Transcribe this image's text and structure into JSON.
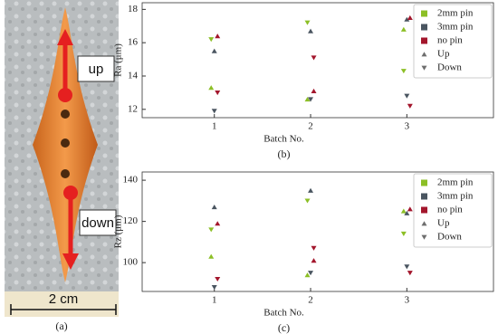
{
  "photo": {
    "labels": [
      "up",
      "down"
    ],
    "scale": "2 cm",
    "caption": "(a)"
  },
  "chart_data": [
    {
      "type": "scatter",
      "caption": "(b)",
      "ylabel": "Ra (μm)",
      "xlabel": "Batch No.",
      "x": [
        1,
        2,
        3
      ],
      "xlim": [
        0.25,
        3.9
      ],
      "xticks": [
        1,
        2,
        3
      ],
      "ylim": [
        11.5,
        18.4
      ],
      "yticks": [
        12,
        14,
        16,
        18
      ],
      "series": [
        {
          "name": "2mm pin",
          "color": "#8cbf26",
          "up": [
            13.3,
            12.6,
            16.8
          ],
          "down": [
            16.2,
            17.2,
            14.3
          ]
        },
        {
          "name": "3mm pin",
          "color": "#4a5560",
          "up": [
            15.5,
            16.7,
            17.4
          ],
          "down": [
            11.9,
            12.6,
            12.8
          ]
        },
        {
          "name": "no pin",
          "color": "#a3162c",
          "up": [
            16.4,
            13.1,
            17.5
          ],
          "down": [
            13.0,
            15.1,
            12.2
          ]
        }
      ],
      "markers": [
        {
          "name": "Up",
          "color": "#6e6e6e"
        },
        {
          "name": "Down",
          "color": "#6e6e6e"
        }
      ]
    },
    {
      "type": "scatter",
      "caption": "(c)",
      "ylabel": "Rz (μm)",
      "xlabel": "Batch No.",
      "x": [
        1,
        2,
        3
      ],
      "xlim": [
        0.25,
        3.9
      ],
      "xticks": [
        1,
        2,
        3
      ],
      "ylim": [
        86,
        144
      ],
      "yticks": [
        100,
        120,
        140
      ],
      "series": [
        {
          "name": "2mm pin",
          "color": "#8cbf26",
          "up": [
            103,
            94,
            125
          ],
          "down": [
            116,
            130,
            114
          ]
        },
        {
          "name": "3mm pin",
          "color": "#4a5560",
          "up": [
            127,
            135,
            124
          ],
          "down": [
            88,
            95,
            98
          ]
        },
        {
          "name": "no pin",
          "color": "#a3162c",
          "up": [
            119,
            101,
            126
          ],
          "down": [
            92,
            107,
            95
          ]
        }
      ],
      "markers": [
        {
          "name": "Up",
          "color": "#6e6e6e"
        },
        {
          "name": "Down",
          "color": "#6e6e6e"
        }
      ]
    }
  ]
}
